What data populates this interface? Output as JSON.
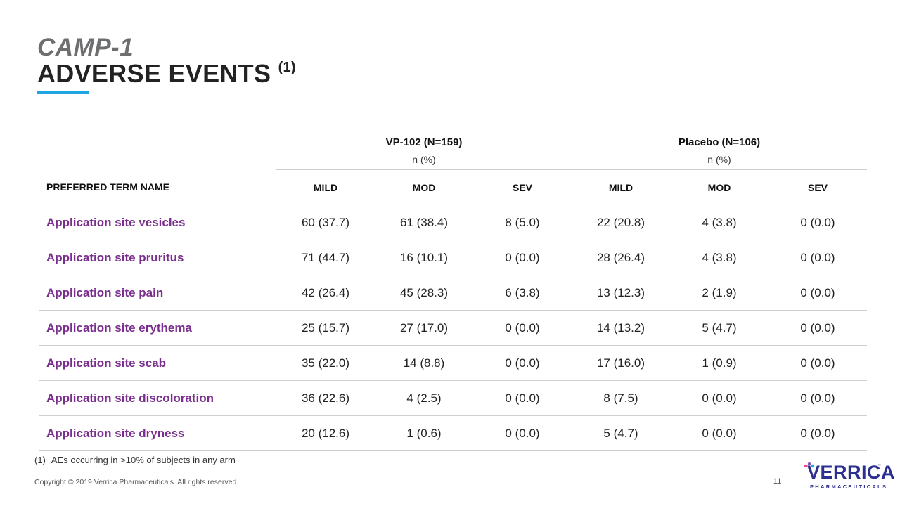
{
  "title": {
    "line1": "CAMP-1",
    "line2": "ADVERSE EVENTS",
    "footnote_ref": "(1)"
  },
  "table": {
    "groups": [
      {
        "name": "VP-102 (N=159)",
        "unit": "n (%)"
      },
      {
        "name": "Placebo (N=106)",
        "unit": "n (%)"
      }
    ],
    "columns": [
      "PREFERRED TERM NAME",
      "MILD",
      "MOD",
      "SEV",
      "MILD",
      "MOD",
      "SEV"
    ],
    "rows": [
      [
        "Application site vesicles",
        "60 (37.7)",
        "61 (38.4)",
        "8 (5.0)",
        "22 (20.8)",
        "4 (3.8)",
        "0 (0.0)"
      ],
      [
        "Application site pruritus",
        "71 (44.7)",
        "16 (10.1)",
        "0 (0.0)",
        "28 (26.4)",
        "4 (3.8)",
        "0 (0.0)"
      ],
      [
        "Application site pain",
        "42 (26.4)",
        "45 (28.3)",
        "6 (3.8)",
        "13 (12.3)",
        "2 (1.9)",
        "0 (0.0)"
      ],
      [
        "Application site erythema",
        "25 (15.7)",
        "27 (17.0)",
        "0 (0.0)",
        "14 (13.2)",
        "5 (4.7)",
        "0 (0.0)"
      ],
      [
        "Application site scab",
        "35 (22.0)",
        "14 (8.8)",
        "0 (0.0)",
        "17 (16.0)",
        "1 (0.9)",
        "0 (0.0)"
      ],
      [
        "Application site discoloration",
        "36 (22.6)",
        "4 (2.5)",
        "0 (0.0)",
        "8 (7.5)",
        "0 (0.0)",
        "0 (0.0)"
      ],
      [
        "Application site dryness",
        "20 (12.6)",
        "1 (0.6)",
        "0 (0.0)",
        "5 (4.7)",
        "0 (0.0)",
        "0 (0.0)"
      ]
    ]
  },
  "footnote": {
    "number": "(1)",
    "text": "AEs occurring in >10% of subjects in any arm"
  },
  "footer": {
    "copyright": "Copyright © 2019 Verrica Pharmaceuticals. All rights reserved.",
    "page_number": "11"
  },
  "logo": {
    "name": "VERRICA",
    "subtitle": "PHARMACEUTICALS",
    "tm": "™",
    "icon": "verrica-logo"
  },
  "colors": {
    "accent_blue": "#1ea6e2",
    "term_purple": "#7a2e8e",
    "logo_navy": "#2b2f8f"
  }
}
